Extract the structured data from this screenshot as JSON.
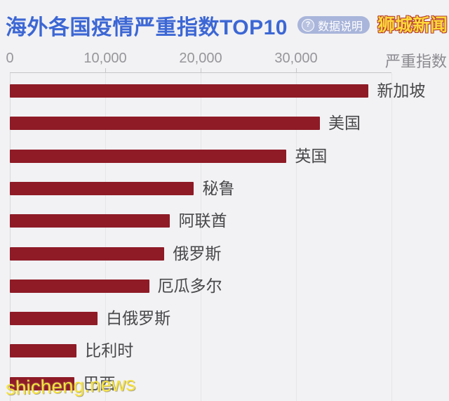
{
  "header": {
    "title": "海外各国疫情严重指数TOP10",
    "badge": {
      "icon": "?",
      "label": "数据说明"
    },
    "watermark_top": "狮城新闻",
    "watermark_bottom": "shicheng.news"
  },
  "chart_data": {
    "type": "bar",
    "orientation": "horizontal",
    "title": "海外各国疫情严重指数TOP10",
    "categories": [
      "新加坡",
      "美国",
      "英国",
      "秘鲁",
      "阿联酋",
      "俄罗斯",
      "厄瓜多尔",
      "白俄罗斯",
      "比利时",
      "巴西"
    ],
    "values": [
      37600,
      32500,
      29000,
      19300,
      16800,
      16200,
      14600,
      9200,
      7000,
      6800
    ],
    "x_axis": {
      "label": "严重指数",
      "ticks": [
        "0",
        "10,000",
        "20,000",
        "30,000"
      ],
      "tick_values": [
        0,
        10000,
        20000,
        30000
      ],
      "max": 40000,
      "grid_values": [
        10000,
        20000,
        30000,
        40000
      ]
    },
    "grid": true,
    "legend": "none",
    "bar_color": "#8E1B26"
  },
  "colors": {
    "background": "#F2F2F4",
    "title_blue": "#3C67D4",
    "badge_bg": "#A9B5DA",
    "badge_text": "#FFFFFF",
    "bar": "#8E1B26",
    "tick_label": "#96969B",
    "axis_label": "#8B8B90",
    "bar_label": "#48484B",
    "gridline": "#E6E6E9",
    "watermark_yellow": "#FFD83B"
  }
}
